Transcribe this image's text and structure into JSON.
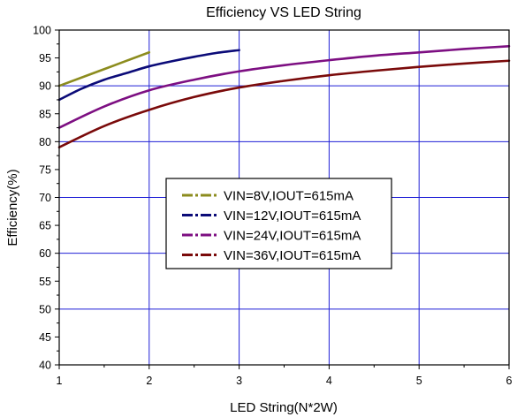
{
  "chart_data": {
    "type": "line",
    "title": "Efficiency VS LED String",
    "xlabel": "LED String(N*2W)",
    "ylabel": "Efficiency(%)",
    "xlim": [
      1,
      6
    ],
    "ylim": [
      40,
      100
    ],
    "x_ticks": [
      "1",
      "2",
      "3",
      "4",
      "5",
      "6"
    ],
    "y_ticks": [
      "40",
      "45",
      "50",
      "55",
      "60",
      "65",
      "70",
      "75",
      "80",
      "85",
      "90",
      "95",
      "100"
    ],
    "grid": true,
    "legend_position": "center-left",
    "series": [
      {
        "name": "VIN=8V,IOUT=615mA",
        "color": "#8c8c1e",
        "x": [
          1,
          1.5,
          2
        ],
        "y": [
          90.0,
          93.0,
          96.0
        ]
      },
      {
        "name": "VIN=12V,IOUT=615mA",
        "color": "#0b0b78",
        "x": [
          1,
          1.25,
          1.5,
          1.75,
          2,
          2.25,
          2.5,
          2.75,
          3
        ],
        "y": [
          87.5,
          89.5,
          91.1,
          92.3,
          93.5,
          94.4,
          95.2,
          95.9,
          96.4
        ]
      },
      {
        "name": "VIN=24V,IOUT=615mA",
        "color": "#7d0f82",
        "x": [
          1,
          1.5,
          2,
          2.5,
          3,
          3.5,
          4,
          4.5,
          5,
          5.5,
          6
        ],
        "y": [
          82.5,
          86.3,
          89.2,
          91.1,
          92.6,
          93.7,
          94.6,
          95.4,
          96.0,
          96.6,
          97.1
        ]
      },
      {
        "name": "VIN=36V,IOUT=615mA",
        "color": "#7a0a0a",
        "x": [
          1,
          1.5,
          2,
          2.5,
          3,
          3.5,
          4,
          4.5,
          5,
          5.5,
          6
        ],
        "y": [
          79.0,
          82.8,
          85.7,
          88.0,
          89.7,
          90.9,
          91.9,
          92.7,
          93.4,
          94.0,
          94.5
        ]
      }
    ]
  },
  "colors": {
    "grid": "#1f1fd6",
    "axis": "#000000",
    "background": "#ffffff"
  }
}
